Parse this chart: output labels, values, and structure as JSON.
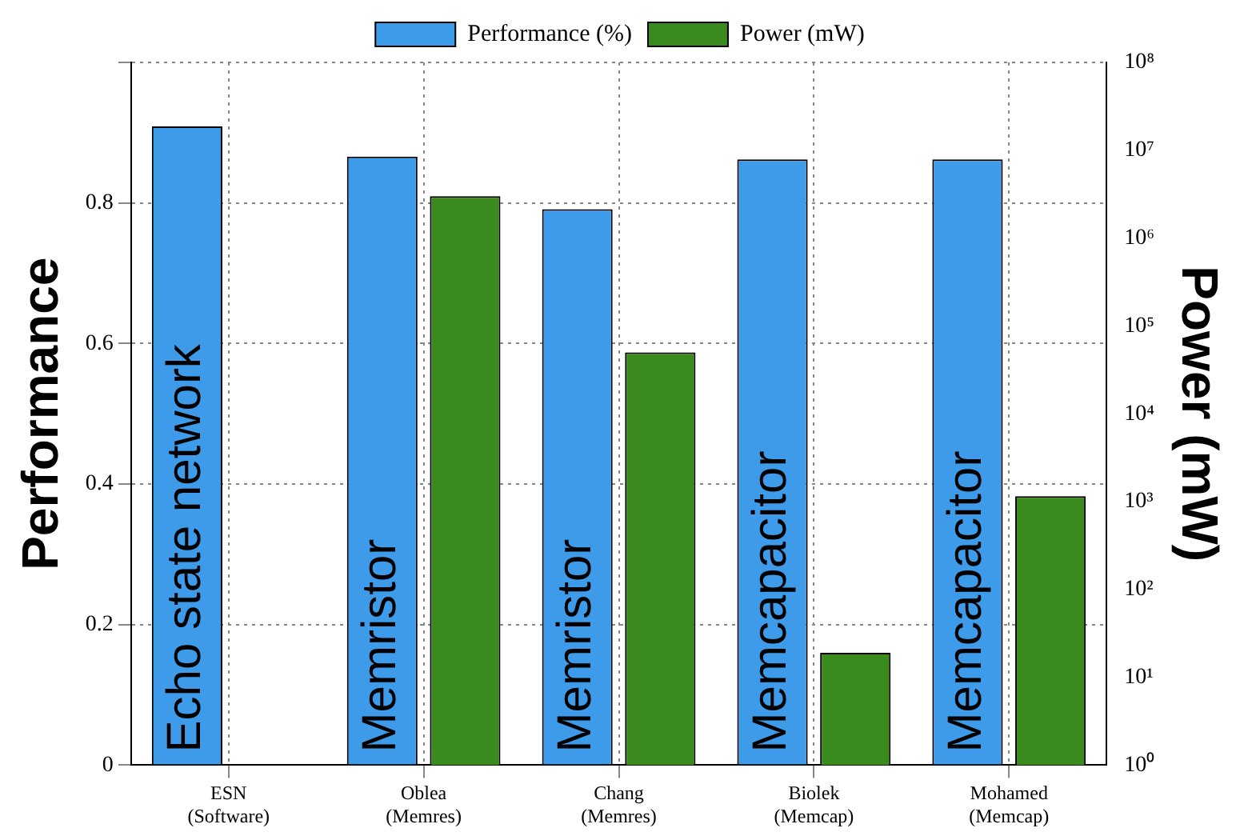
{
  "chart_data": {
    "type": "bar",
    "categories": [
      "ESN\n(Software)",
      "Oblea\n(Memres)",
      "Chang\n(Memres)",
      "Biolek\n(Memcap)",
      "Mohamed\n(Memcap)"
    ],
    "series": [
      {
        "name": "Performance (%)",
        "color": "#3d9be9",
        "values": [
          0.909,
          0.866,
          0.791,
          0.862,
          0.862
        ]
      },
      {
        "name": "Power (mW)",
        "color": "#3a8a1e",
        "axis": "y2",
        "values": [
          null,
          3000000,
          50000,
          19,
          1150
        ]
      }
    ],
    "ylabel": "Performance",
    "y2label": "Power (mW)",
    "ylim": [
      0,
      1
    ],
    "yticks": [
      0,
      0.2,
      0.4,
      0.6,
      0.8,
      {
        "value": 1,
        "label": null
      }
    ],
    "log": "y2",
    "y2lim": [
      1,
      100000000
    ],
    "y2ticks": [
      {
        "value": 1,
        "label": "10⁰"
      },
      {
        "value": 10,
        "label": "10¹"
      },
      {
        "value": 100,
        "label": "10²"
      },
      {
        "value": 1000,
        "label": "10³"
      },
      {
        "value": 10000,
        "label": "10⁴"
      },
      {
        "value": 100000,
        "label": "10⁵"
      },
      {
        "value": 1000000,
        "label": "10⁶"
      },
      {
        "value": 10000000,
        "label": "10⁷"
      },
      {
        "value": 100000000,
        "label": "10⁸"
      }
    ],
    "annotations": [
      "Echo state network",
      "Memristor",
      "Memristor",
      "Memcapacitor",
      "Memcapacitor"
    ],
    "grid": true,
    "legend": "top"
  }
}
